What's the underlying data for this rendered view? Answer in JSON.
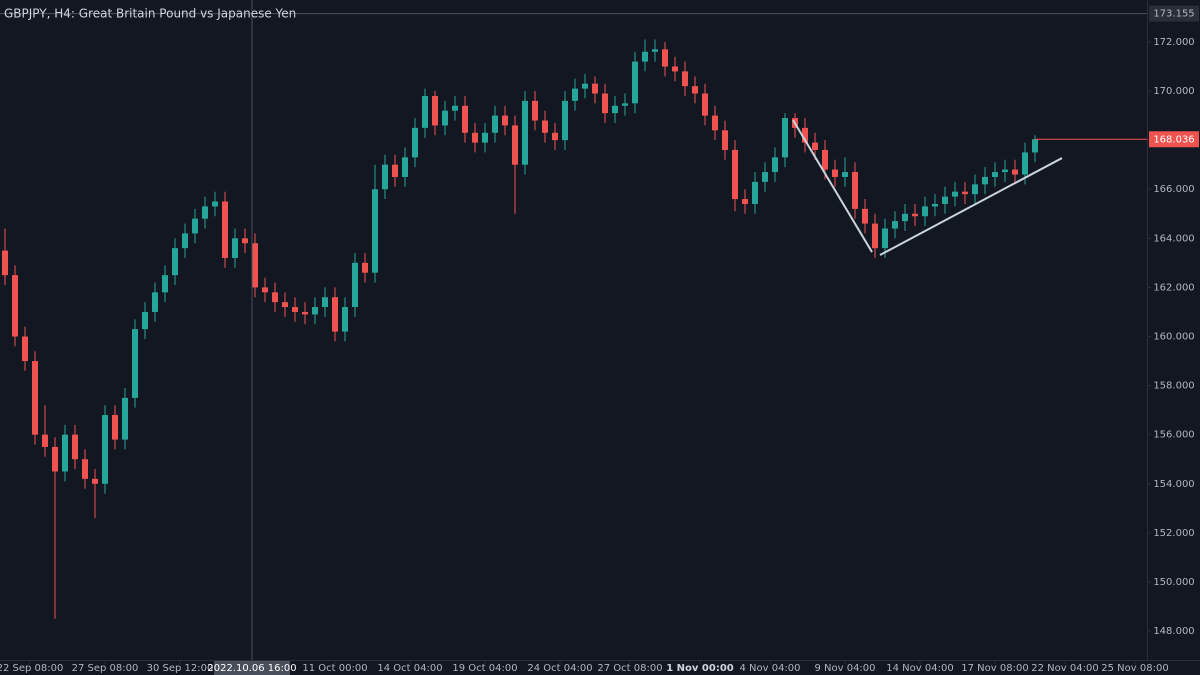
{
  "chart_data": {
    "type": "candlestick",
    "title": "GBPJPY, H4: Great Britain Pound vs Japanese Yen",
    "up_color": "#26a69a",
    "down_color": "#ef5350",
    "open": [
      163.5,
      162.5,
      160.0,
      159.0,
      156.0,
      155.5,
      154.5,
      156.0,
      155.0,
      154.2,
      154.0,
      156.8,
      155.8,
      157.5,
      160.3,
      161.0,
      161.8,
      162.5,
      163.6,
      164.2,
      164.8,
      165.3,
      165.5,
      163.2,
      164.0,
      163.8,
      162.0,
      161.8,
      161.4,
      161.2,
      161.0,
      160.9,
      161.2,
      161.6,
      160.2,
      161.2,
      163.0,
      162.6,
      166.0,
      167.0,
      166.5,
      167.3,
      168.5,
      169.8,
      168.6,
      169.2,
      169.4,
      168.3,
      167.9,
      168.3,
      169.0,
      168.6,
      167.0,
      169.6,
      168.8,
      168.3,
      168.0,
      169.6,
      170.1,
      170.3,
      169.9,
      169.1,
      169.4,
      169.5,
      171.2,
      171.6,
      171.7,
      171.0,
      170.8,
      170.2,
      169.9,
      169.0,
      168.4,
      167.6,
      165.6,
      165.4,
      166.3,
      166.7,
      167.3,
      168.9,
      168.5,
      167.9,
      167.6,
      166.8,
      166.5,
      166.7,
      165.2,
      164.6,
      163.6,
      164.4,
      164.7,
      165.0,
      164.9,
      165.3,
      165.4,
      165.7,
      165.9,
      165.8,
      166.2,
      166.5,
      166.7,
      166.8,
      166.6,
      167.5
    ],
    "high": [
      164.4,
      162.9,
      160.4,
      159.4,
      157.2,
      155.9,
      156.4,
      156.4,
      155.4,
      154.6,
      157.2,
      157.2,
      157.9,
      160.7,
      161.4,
      162.2,
      162.9,
      164.0,
      164.6,
      165.2,
      165.7,
      165.9,
      165.9,
      164.4,
      164.4,
      164.2,
      162.4,
      162.2,
      161.8,
      161.6,
      161.4,
      161.6,
      162.0,
      162.0,
      161.6,
      163.4,
      163.4,
      167.0,
      167.4,
      167.4,
      167.7,
      168.9,
      170.1,
      170.0,
      169.6,
      169.8,
      169.8,
      168.7,
      168.7,
      169.4,
      169.4,
      169.0,
      170.0,
      170.0,
      169.2,
      168.7,
      170.0,
      170.5,
      170.7,
      170.6,
      170.3,
      169.8,
      169.9,
      171.6,
      172.1,
      172.1,
      172.0,
      171.4,
      171.2,
      170.6,
      170.3,
      169.4,
      168.8,
      168.0,
      166.0,
      166.7,
      167.1,
      167.7,
      169.1,
      169.1,
      168.9,
      168.3,
      168.0,
      167.2,
      167.3,
      167.1,
      165.6,
      165.0,
      164.8,
      165.1,
      165.4,
      165.4,
      165.7,
      165.8,
      166.1,
      166.3,
      166.3,
      166.6,
      166.9,
      167.1,
      167.2,
      167.2,
      167.9,
      168.2
    ],
    "low": [
      162.1,
      159.6,
      158.6,
      155.6,
      155.1,
      148.5,
      154.1,
      154.6,
      153.8,
      152.6,
      153.6,
      155.4,
      155.4,
      157.1,
      159.9,
      160.6,
      161.4,
      162.1,
      163.2,
      163.8,
      164.4,
      164.9,
      162.8,
      162.8,
      163.4,
      161.6,
      161.4,
      161.0,
      160.8,
      160.6,
      160.5,
      160.5,
      160.8,
      159.8,
      159.8,
      160.8,
      162.2,
      162.2,
      165.6,
      166.1,
      166.1,
      166.9,
      168.1,
      168.2,
      168.2,
      168.8,
      167.9,
      167.5,
      167.5,
      167.9,
      168.2,
      165.0,
      166.6,
      168.4,
      167.9,
      167.6,
      167.6,
      169.2,
      169.7,
      169.5,
      168.7,
      168.7,
      169.0,
      169.1,
      170.8,
      171.2,
      170.6,
      170.4,
      169.8,
      169.5,
      168.6,
      168.0,
      167.2,
      165.1,
      165.0,
      165.0,
      165.9,
      166.3,
      166.9,
      168.1,
      167.5,
      167.2,
      166.4,
      166.1,
      166.1,
      164.8,
      164.2,
      163.2,
      163.2,
      164.0,
      164.3,
      164.5,
      164.5,
      164.9,
      165.0,
      165.3,
      165.4,
      165.4,
      165.8,
      166.1,
      166.3,
      166.2,
      166.2,
      167.1
    ],
    "close": [
      162.5,
      160.0,
      159.0,
      156.0,
      155.5,
      154.5,
      156.0,
      155.0,
      154.2,
      154.0,
      156.8,
      155.8,
      157.5,
      160.3,
      161.0,
      161.8,
      162.5,
      163.6,
      164.2,
      164.8,
      165.3,
      165.5,
      163.2,
      164.0,
      163.8,
      162.0,
      161.8,
      161.4,
      161.2,
      161.0,
      160.9,
      161.2,
      161.6,
      160.2,
      161.2,
      163.0,
      162.6,
      166.0,
      167.0,
      166.5,
      167.3,
      168.5,
      169.8,
      168.6,
      169.2,
      169.4,
      168.3,
      167.9,
      168.3,
      169.0,
      168.6,
      167.0,
      169.6,
      168.8,
      168.3,
      168.0,
      169.6,
      170.1,
      170.3,
      169.9,
      169.1,
      169.4,
      169.5,
      171.2,
      171.6,
      171.7,
      171.0,
      170.8,
      170.2,
      169.9,
      169.0,
      168.4,
      167.6,
      165.6,
      165.4,
      166.3,
      166.7,
      167.3,
      168.9,
      168.5,
      167.9,
      167.6,
      166.8,
      166.5,
      166.7,
      165.2,
      164.6,
      163.6,
      164.4,
      164.7,
      165.0,
      164.9,
      165.3,
      165.4,
      165.7,
      165.9,
      165.8,
      166.2,
      166.5,
      166.7,
      166.8,
      166.6,
      167.5,
      168.036
    ],
    "xlim": [
      -0.5,
      114
    ],
    "xticks": [
      {
        "value": 2.5,
        "label": "22 Sep 08:00"
      },
      {
        "value": 10,
        "label": "27 Sep 08:00"
      },
      {
        "value": 17.5,
        "label": "30 Sep 12:00"
      },
      {
        "value": 33,
        "label": "11 Oct 00:00"
      },
      {
        "value": 40.5,
        "label": "14 Oct 04:00"
      },
      {
        "value": 48,
        "label": "19 Oct 04:00"
      },
      {
        "value": 55.5,
        "label": "24 Oct 04:00"
      },
      {
        "value": 62.5,
        "label": "27 Oct 08:00"
      },
      {
        "value": 69.5,
        "label": "1 Nov 00:00"
      },
      {
        "value": 76.5,
        "label": "4 Nov 04:00"
      },
      {
        "value": 84,
        "label": "9 Nov 04:00"
      },
      {
        "value": 91.5,
        "label": "14 Nov 04:00"
      },
      {
        "value": 99,
        "label": "17 Nov 08:00"
      },
      {
        "value": 106,
        "label": "22 Nov 04:00"
      },
      {
        "value": 113,
        "label": "25 Nov 08:00"
      }
    ],
    "ylim": [
      146.82,
      173.71
    ],
    "yticks": [
      {
        "value": 148,
        "label": "148.000"
      },
      {
        "value": 150,
        "label": "150.000"
      },
      {
        "value": 152,
        "label": "152.000"
      },
      {
        "value": 154,
        "label": "154.000"
      },
      {
        "value": 156,
        "label": "156.000"
      },
      {
        "value": 158,
        "label": "158.000"
      },
      {
        "value": 160,
        "label": "160.000"
      },
      {
        "value": 162,
        "label": "162.000"
      },
      {
        "value": 164,
        "label": "164.000"
      },
      {
        "value": 166,
        "label": "166.000"
      },
      {
        "value": 168,
        "label": "168.000"
      },
      {
        "value": 170,
        "label": "170.000"
      },
      {
        "value": 172,
        "label": "172.000"
      }
    ],
    "crosshair": {
      "x": 24.7,
      "x_label": "2022.10.06 16:00",
      "y": 173.155
    },
    "trendlines": [
      {
        "x": [
          78.8,
          86.7
        ],
        "y": [
          168.82,
          163.44
        ]
      },
      {
        "x": [
          87.5,
          105.7
        ],
        "y": [
          163.32,
          167.27
        ]
      }
    ]
  }
}
